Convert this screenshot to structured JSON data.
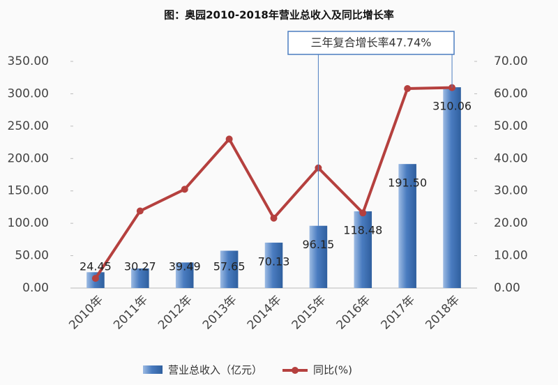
{
  "chart_data": {
    "type": "bar",
    "title": "图：奥园2010-2018年营业总收入及同比增长率",
    "annotation": "三年复合增长率47.74%",
    "categories": [
      "2010年",
      "2011年",
      "2012年",
      "2013年",
      "2014年",
      "2015年",
      "2016年",
      "2017年",
      "2018年"
    ],
    "series": [
      {
        "name": "营业总收入（亿元）",
        "type": "bar",
        "color": "#4a7cc0",
        "values": [
          24.45,
          30.27,
          39.49,
          57.65,
          70.13,
          96.15,
          118.48,
          191.5,
          310.06
        ],
        "value_labels": [
          "24.45",
          "30.27",
          "39.49",
          "57.65",
          "70.13",
          "96.15",
          "118.48",
          "191.50",
          "310.06"
        ]
      },
      {
        "name": "同比(%)",
        "type": "line",
        "axis": "y2",
        "color": "#b5403e",
        "values": [
          3,
          23.8,
          30.5,
          46.0,
          21.6,
          37.1,
          23.2,
          61.6,
          61.9
        ]
      }
    ],
    "ylim": [
      0,
      350
    ],
    "yticks": [
      {
        "value": 0,
        "label": "0.00"
      },
      {
        "value": 50,
        "label": "50.00"
      },
      {
        "value": 100,
        "label": "100.00"
      },
      {
        "value": 150,
        "label": "150.00"
      },
      {
        "value": 200,
        "label": "200.00"
      },
      {
        "value": 250,
        "label": "250.00"
      },
      {
        "value": 300,
        "label": "300.00"
      },
      {
        "value": 350,
        "label": "350.00"
      }
    ],
    "y2lim": [
      0,
      70
    ],
    "y2ticks": [
      {
        "value": 0,
        "label": "0.00"
      },
      {
        "value": 10,
        "label": "10.00"
      },
      {
        "value": 20,
        "label": "20.00"
      },
      {
        "value": 30,
        "label": "30.00"
      },
      {
        "value": 40,
        "label": "40.00"
      },
      {
        "value": 50,
        "label": "50.00"
      },
      {
        "value": 60,
        "label": "60.00"
      },
      {
        "value": 70,
        "label": "70.00"
      }
    ],
    "grid": false
  }
}
